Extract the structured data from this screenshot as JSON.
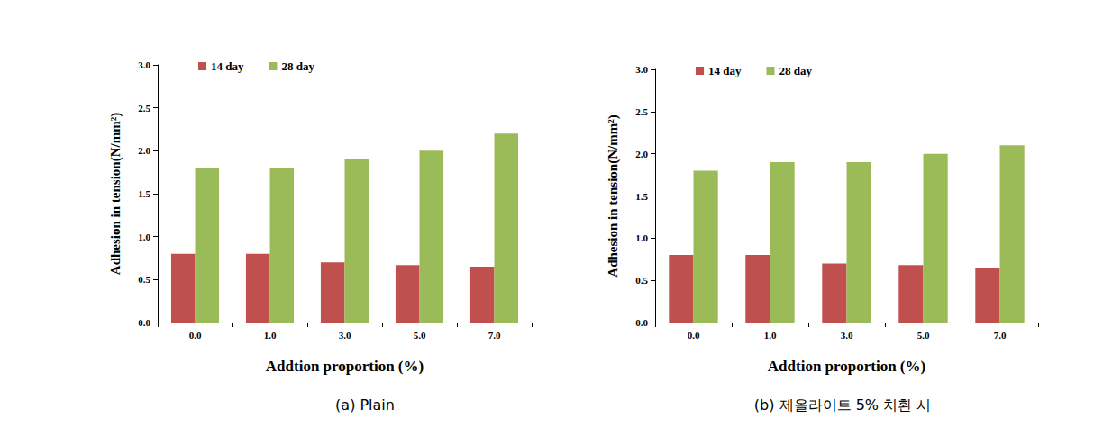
{
  "chart_data": [
    {
      "type": "bar",
      "title": "(a) Plain",
      "x_label": "Addtion proportion (%)",
      "y_label": "Adhesion in tension(N/mm²)",
      "categories": [
        "0.0",
        "1.0",
        "3.0",
        "5.0",
        "7.0"
      ],
      "series": [
        {
          "name": "14 day",
          "color": "#c0504d",
          "values": [
            0.8,
            0.8,
            0.7,
            0.67,
            0.65
          ]
        },
        {
          "name": "28 day",
          "color": "#9bbb59",
          "values": [
            1.8,
            1.8,
            1.9,
            2.0,
            2.2
          ]
        }
      ],
      "ylim": [
        0,
        3
      ],
      "yticks": [
        {
          "value": 0,
          "label": "0.0"
        },
        {
          "value": 0.5,
          "label": "0.5"
        },
        {
          "value": 1,
          "label": "1.0"
        },
        {
          "value": 1.5,
          "label": "1.5"
        },
        {
          "value": 2,
          "label": "2.0"
        },
        {
          "value": 2.5,
          "label": "2.5"
        },
        {
          "value": 3,
          "label": "3.0"
        }
      ],
      "grid": false,
      "legend": "upper left"
    },
    {
      "type": "bar",
      "title": "(b) 제올라이트 5% 치환 시",
      "x_label": "Addtion proportion (%)",
      "y_label": "Adhesion in tension(N/mm²)",
      "categories": [
        "0.0",
        "1.0",
        "3.0",
        "5.0",
        "7.0"
      ],
      "series": [
        {
          "name": "14 day",
          "color": "#c0504d",
          "values": [
            0.8,
            0.8,
            0.7,
            0.68,
            0.65
          ]
        },
        {
          "name": "28 day",
          "color": "#9bbb59",
          "values": [
            1.8,
            1.9,
            1.9,
            2.0,
            2.1
          ]
        }
      ],
      "ylim": [
        0,
        3
      ],
      "yticks": [
        {
          "value": 0,
          "label": "0.0"
        },
        {
          "value": 0.5,
          "label": "0.5"
        },
        {
          "value": 1,
          "label": "1.0"
        },
        {
          "value": 1.5,
          "label": "1.5"
        },
        {
          "value": 2,
          "label": "2.0"
        },
        {
          "value": 2.5,
          "label": "2.5"
        },
        {
          "value": 3,
          "label": "3.0"
        }
      ],
      "grid": false,
      "legend": "upper left"
    }
  ]
}
